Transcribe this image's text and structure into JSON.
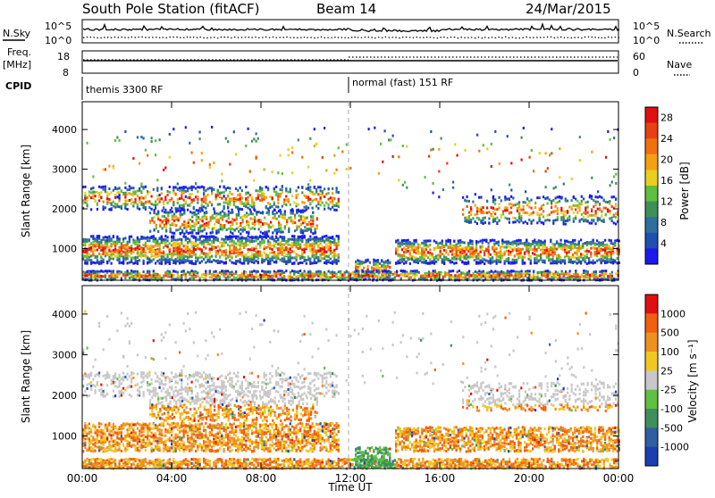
{
  "header": {
    "station": "South Pole Station (fitACF)",
    "beam": "Beam 14",
    "date": "24/Mar/2015"
  },
  "left_labels": {
    "nsky": "N.Sky",
    "freq_line1": "Freq.",
    "freq_line2": "[MHz]",
    "cpid": "CPID"
  },
  "right_labels": {
    "nsearch": "N.Search",
    "nave": "Nave"
  },
  "noise_panel": {
    "left_ticks": [
      "10^5",
      "10^0"
    ],
    "right_ticks": [
      "10^5",
      "10^0"
    ]
  },
  "freq_panel": {
    "left_ticks": [
      "18",
      "8"
    ],
    "right_ticks": [
      "60",
      "0"
    ]
  },
  "cpid_segments": [
    {
      "label": "themis 3300 RF",
      "start_hour": 0
    },
    {
      "label": "normal (fast) 151 RF",
      "start_hour": 12
    }
  ],
  "colors": {
    "power_scale": [
      "#1a1aee",
      "#1f4fb0",
      "#2f6f9a",
      "#3f8f5a",
      "#5fbf3f",
      "#e8d020",
      "#f4a010",
      "#f07010",
      "#e84010",
      "#e01010"
    ],
    "velocity_scale": [
      "#1a3fb0",
      "#2f5fa0",
      "#3f8f5a",
      "#60c040",
      "#c8c8c8",
      "#f0c820",
      "#f09020",
      "#f06010",
      "#e01010"
    ]
  },
  "chart_data": [
    {
      "type": "heatmap",
      "name": "power",
      "xlabel": "",
      "ylabel": "Slant Range [km]",
      "x_ticks": [
        "00:00",
        "04:00",
        "08:00",
        "12:00",
        "16:00",
        "20:00",
        "00:00"
      ],
      "y_ticks": [
        "1000",
        "2000",
        "3000",
        "4000"
      ],
      "xlim_hours": [
        0,
        24
      ],
      "ylim_km": [
        200,
        4700
      ],
      "colorbar_label": "Power [dB]",
      "colorbar_ticks": [
        "4",
        "8",
        "12",
        "16",
        "20",
        "24",
        "28"
      ],
      "colorbar_range": [
        0,
        30
      ]
    },
    {
      "type": "heatmap",
      "name": "velocity",
      "xlabel": "Time UT",
      "ylabel": "Slant Range [km]",
      "x_ticks": [
        "00:00",
        "04:00",
        "08:00",
        "12:00",
        "16:00",
        "20:00",
        "00:00"
      ],
      "y_ticks": [
        "1000",
        "2000",
        "3000",
        "4000"
      ],
      "xlim_hours": [
        0,
        24
      ],
      "ylim_km": [
        200,
        4700
      ],
      "colorbar_label": "Velocity [m s⁻¹]",
      "colorbar_ticks": [
        "1000",
        "500",
        "100",
        "25",
        "-25",
        "-100",
        "-500",
        "-1000"
      ],
      "colorbar_range": [
        -1250,
        1250
      ]
    }
  ]
}
